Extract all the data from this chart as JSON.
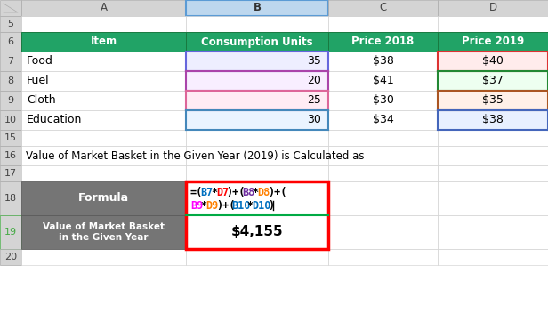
{
  "col_headers": [
    "A",
    "B",
    "C",
    "D"
  ],
  "data_rows": [
    {
      "item": "Food",
      "units": 35,
      "price2018": "$38",
      "price2019": "$40"
    },
    {
      "item": "Fuel",
      "units": 20,
      "price2018": "$41",
      "price2019": "$37"
    },
    {
      "item": "Cloth",
      "units": 25,
      "price2018": "$30",
      "price2019": "$35"
    },
    {
      "item": "Education",
      "units": 30,
      "price2018": "$34",
      "price2019": "$38"
    }
  ],
  "note_text": "Value of Market Basket in the Given Year (2019) is Calculated as",
  "formula_label": "Formula",
  "result_label": "Value of Market Basket\nin the Given Year",
  "result_value": "$4,155",
  "b_bgs": [
    "#EEEEFF",
    "#F8EEFF",
    "#FFECF4",
    "#EAF4FF"
  ],
  "d_bgs": [
    "#FFECEC",
    "#EDFFF0",
    "#FFF0E8",
    "#E8F0FF"
  ],
  "b_border_colors": [
    "#6666DD",
    "#AA44AA",
    "#DD6699",
    "#4488BB"
  ],
  "d_border_colors": [
    "#DD3333",
    "#228833",
    "#AA5522",
    "#4466BB"
  ],
  "segments_line1": [
    [
      "=(",
      "#000000"
    ],
    [
      "B7",
      "#0070C0"
    ],
    [
      "*",
      "#000000"
    ],
    [
      "D7",
      "#FF0000"
    ],
    [
      ")+(",
      "#000000"
    ],
    [
      "B8",
      "#7030A0"
    ],
    [
      "*",
      "#000000"
    ],
    [
      "D8",
      "#FF8000"
    ],
    [
      ")+(",
      "#000000"
    ]
  ],
  "segments_line2": [
    [
      "B9",
      "#FF00FF"
    ],
    [
      "*",
      "#000000"
    ],
    [
      "D9",
      "#FF8000"
    ],
    [
      ")+(",
      "#000000"
    ],
    [
      "B10",
      "#0070C0"
    ],
    [
      "*",
      "#000000"
    ],
    [
      "D10",
      "#0070C0"
    ],
    [
      ")",
      "#000000"
    ]
  ]
}
